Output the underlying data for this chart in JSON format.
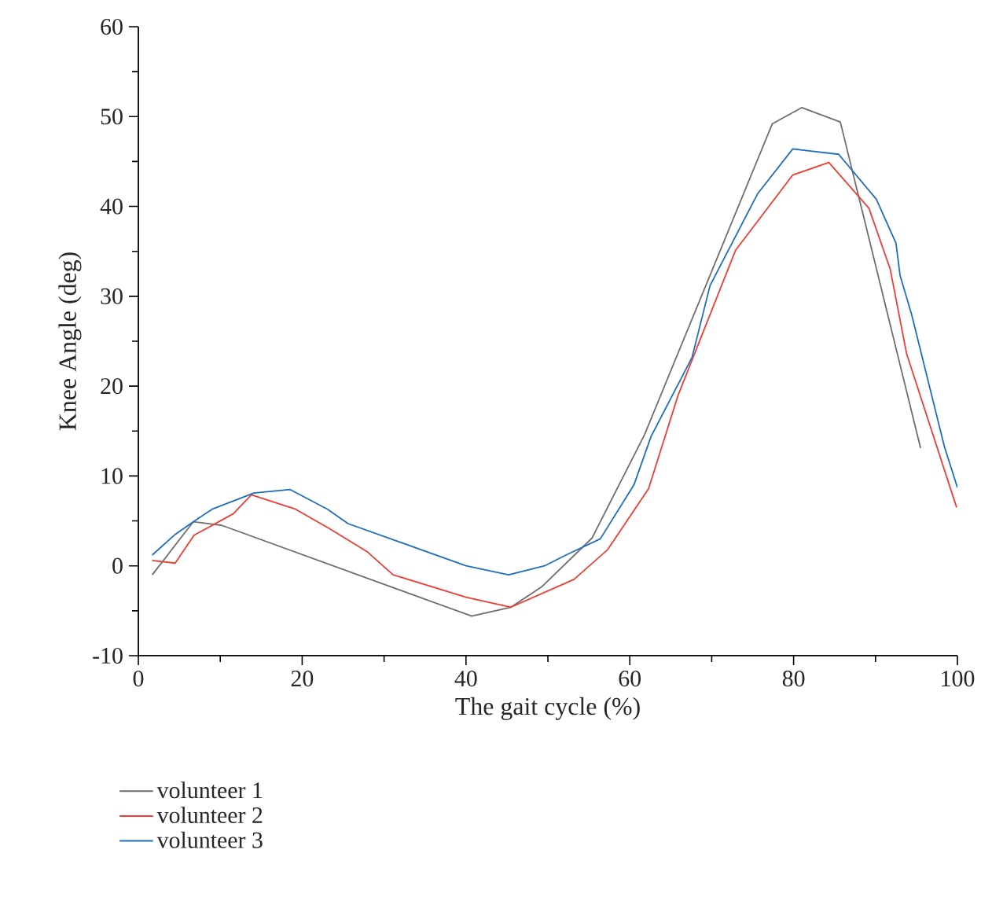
{
  "chart_data": {
    "type": "line",
    "xlabel": "The gait cycle (%)",
    "ylabel": "Knee Angle (deg)",
    "xlim": [
      0,
      100
    ],
    "ylim": [
      -10,
      60
    ],
    "xticks": [
      0,
      20,
      40,
      60,
      80,
      100
    ],
    "yticks": [
      -10,
      0,
      10,
      20,
      30,
      40,
      50,
      60
    ],
    "legend": "bottom",
    "grid": false,
    "series": [
      {
        "name": "volunteer 1",
        "color": "#6e6e6e",
        "x": [
          1.7,
          6.7,
          10.2,
          40.7,
          45.5,
          49.3,
          55.4,
          61.8,
          77.4,
          81.0,
          85.7,
          95.5
        ],
        "values": [
          -1.0,
          4.9,
          4.5,
          -5.6,
          -4.6,
          -2.3,
          3.1,
          14.6,
          49.2,
          51.0,
          49.4,
          13.1
        ]
      },
      {
        "name": "volunteer 2",
        "color": "#f03c32",
        "x": [
          1.7,
          4.5,
          6.8,
          11.6,
          13.8,
          19.2,
          23.4,
          27.9,
          31.1,
          40.0,
          45.5,
          53.2,
          57.3,
          62.3,
          65.9,
          72.9,
          79.9,
          84.3,
          89.2,
          91.8,
          93.8,
          99.9
        ],
        "values": [
          0.6,
          0.3,
          3.4,
          5.8,
          7.9,
          6.3,
          4.1,
          1.6,
          -1.0,
          -3.5,
          -4.6,
          -1.5,
          1.8,
          8.6,
          19.0,
          35.1,
          43.5,
          44.9,
          39.8,
          33.0,
          23.6,
          6.5
        ]
      },
      {
        "name": "volunteer 3",
        "color": "#1f6ebe",
        "x": [
          1.7,
          4.5,
          6.7,
          9.0,
          14.1,
          18.5,
          23.1,
          25.6,
          40.0,
          45.2,
          49.6,
          52.2,
          56.4,
          60.5,
          62.6,
          67.6,
          69.8,
          75.6,
          79.9,
          85.5,
          90.1,
          92.5,
          93.0,
          94.4,
          98.4,
          100
        ],
        "values": [
          1.2,
          3.5,
          4.9,
          6.3,
          8.1,
          8.5,
          6.3,
          4.7,
          0.0,
          -1.0,
          0.0,
          1.2,
          3.0,
          9.0,
          14.4,
          23.2,
          31.2,
          41.4,
          46.4,
          45.8,
          40.8,
          35.9,
          32.3,
          28.0,
          13.3,
          8.7
        ]
      }
    ]
  }
}
